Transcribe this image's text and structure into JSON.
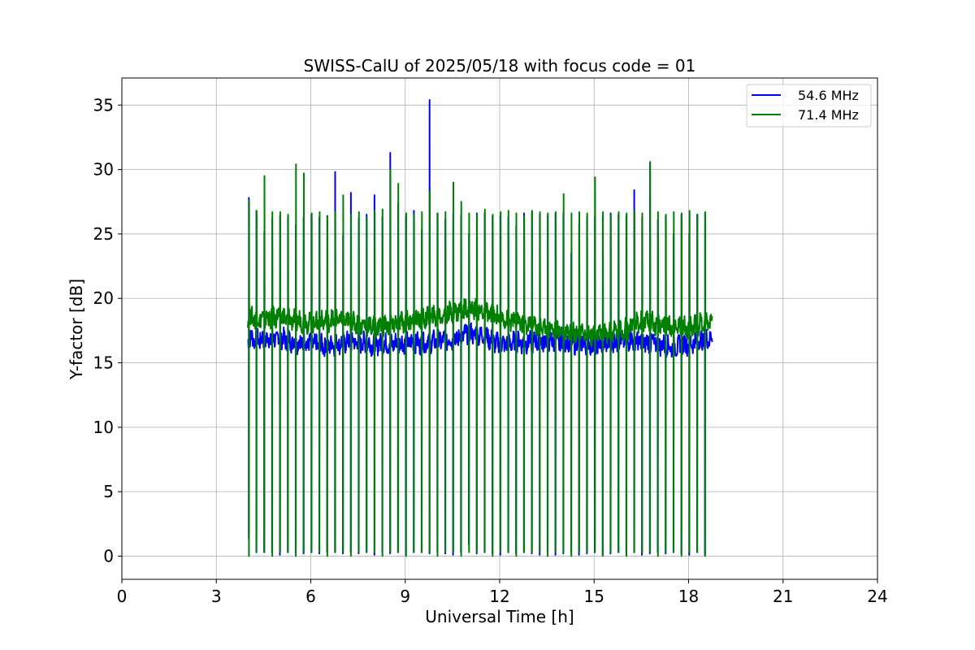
{
  "chart_data": {
    "type": "line",
    "title": "SWISS-CalU of 2025/05/18 with focus code = 01",
    "xlabel": "Universal Time [h]",
    "ylabel": "Y-factor [dB]",
    "xlim": [
      0,
      24
    ],
    "ylim": [
      -1.8,
      37.1
    ],
    "xticks": [
      0,
      3,
      6,
      9,
      12,
      15,
      18,
      21,
      24
    ],
    "yticks": [
      0,
      5,
      10,
      15,
      20,
      25,
      30,
      35
    ],
    "xtick_labels": [
      "0",
      "3",
      "6",
      "9",
      "12",
      "15",
      "18",
      "21",
      "24"
    ],
    "ytick_labels": [
      "0",
      "5",
      "10",
      "15",
      "20",
      "25",
      "30",
      "35"
    ],
    "grid": true,
    "legend_position": "top-right",
    "data_start": 4.0,
    "data_end": 18.75,
    "calibration_times": [
      4.03,
      4.27,
      4.52,
      4.77,
      5.02,
      5.27,
      5.52,
      5.77,
      6.02,
      6.27,
      6.52,
      6.77,
      7.02,
      7.27,
      7.52,
      7.77,
      8.02,
      8.27,
      8.52,
      8.77,
      9.02,
      9.27,
      9.52,
      9.77,
      10.02,
      10.27,
      10.52,
      10.77,
      11.02,
      11.27,
      11.52,
      11.77,
      12.02,
      12.27,
      12.52,
      12.77,
      13.02,
      13.27,
      13.52,
      13.77,
      14.02,
      14.27,
      14.52,
      14.77,
      15.02,
      15.27,
      15.52,
      15.77,
      16.02,
      16.27,
      16.52,
      16.77,
      17.02,
      17.27,
      17.52,
      17.77,
      18.02,
      18.27,
      18.52
    ],
    "series": [
      {
        "name": "54.6 MHz",
        "color": "#0000ff",
        "baseline": {
          "x": [
            4.0,
            4.5,
            5.0,
            5.5,
            6.0,
            6.5,
            7.0,
            7.5,
            8.0,
            8.5,
            9.0,
            9.5,
            10.0,
            10.5,
            11.0,
            11.5,
            12.0,
            12.5,
            13.0,
            13.5,
            14.0,
            14.5,
            15.0,
            15.5,
            16.0,
            16.5,
            17.0,
            17.5,
            18.0,
            18.5,
            18.75
          ],
          "y": [
            16.9,
            16.8,
            16.9,
            16.6,
            16.5,
            16.3,
            16.6,
            16.6,
            16.4,
            16.5,
            16.6,
            16.5,
            16.7,
            16.8,
            17.3,
            17.1,
            16.4,
            16.6,
            16.6,
            16.7,
            16.6,
            16.5,
            16.4,
            16.5,
            16.8,
            16.6,
            16.5,
            16.2,
            16.5,
            16.8,
            16.9
          ]
        },
        "spike_peaks": [
          27.8,
          26.8,
          25.2,
          26.2,
          26.4,
          26.3,
          25.7,
          26.3,
          26.5,
          26.3,
          26.4,
          29.8,
          24.9,
          28.2,
          26.2,
          26.5,
          28.0,
          26.3,
          31.3,
          27.3,
          26.4,
          26.8,
          25.3,
          35.4,
          26.6,
          26.1,
          26.6,
          26.4,
          25.0,
          26.6,
          26.6,
          26.4,
          26.4,
          26.3,
          25.6,
          26.6,
          26.7,
          26.5,
          26.4,
          26.6,
          26.6,
          23.5,
          25.8,
          26.3,
          26.3,
          26.4,
          26.6,
          26.5,
          26.4,
          28.4,
          26.3,
          30.5,
          26.1,
          26.4,
          25.0,
          26.5,
          25.0,
          26.5,
          26.6
        ],
        "spike_floors": [
          1.4,
          0.3,
          0.3,
          0.3,
          0.1,
          0.3,
          0.3,
          0.2,
          0.3,
          0.2,
          0.3,
          0.3,
          0.2,
          0.3,
          0.2,
          0.3,
          0.1,
          0.3,
          0.2,
          0.3,
          0.1,
          0.3,
          0.3,
          0.2,
          0.3,
          0.2,
          0.1,
          0.3,
          0.9,
          0.2,
          0.3,
          0.2,
          0.1,
          0.3,
          0.2,
          0.3,
          0.2,
          0.1,
          0.3,
          0.1,
          0.2,
          0.3,
          0.1,
          0.2,
          0.3,
          0.1,
          0.2,
          0.3,
          0.2,
          0.3,
          0.1,
          0.2,
          0.3,
          0.2,
          0.3,
          0.2,
          0.1,
          0.3,
          0.1
        ]
      },
      {
        "name": "71.4 MHz",
        "color": "#008000",
        "baseline": {
          "x": [
            4.0,
            4.5,
            5.0,
            5.5,
            6.0,
            6.5,
            7.0,
            7.5,
            8.0,
            8.5,
            9.0,
            9.5,
            10.0,
            10.5,
            11.0,
            11.5,
            12.0,
            12.5,
            13.0,
            13.5,
            14.0,
            14.5,
            15.0,
            15.5,
            16.0,
            16.5,
            17.0,
            17.5,
            18.0,
            18.5,
            18.75
          ],
          "y": [
            18.5,
            18.4,
            18.6,
            18.3,
            18.1,
            18.3,
            18.3,
            18.0,
            17.8,
            17.9,
            18.2,
            18.4,
            18.6,
            18.9,
            19.3,
            18.9,
            18.5,
            18.2,
            17.9,
            17.7,
            17.5,
            17.4,
            17.1,
            17.3,
            17.6,
            18.2,
            18.0,
            17.8,
            17.7,
            18.1,
            18.5
          ]
        },
        "spike_peaks": [
          27.6,
          26.8,
          29.5,
          26.7,
          26.7,
          26.5,
          30.4,
          29.7,
          26.6,
          26.7,
          26.4,
          26.7,
          28.0,
          26.5,
          26.7,
          26.3,
          26.8,
          26.9,
          30.0,
          28.9,
          26.6,
          26.5,
          26.7,
          28.3,
          26.6,
          26.7,
          29.0,
          27.5,
          26.6,
          26.5,
          26.9,
          26.5,
          26.7,
          26.8,
          26.6,
          26.4,
          26.8,
          26.7,
          26.6,
          26.7,
          28.1,
          26.6,
          26.7,
          26.6,
          29.4,
          26.7,
          26.5,
          26.7,
          26.6,
          26.8,
          26.6,
          30.6,
          26.7,
          26.5,
          26.7,
          26.6,
          26.8,
          26.5,
          26.7
        ],
        "spike_floors": [
          0.0,
          0.3,
          0.3,
          0.0,
          0.3,
          0.3,
          0.0,
          0.3,
          0.3,
          0.3,
          0.0,
          0.3,
          0.3,
          0.0,
          0.3,
          0.3,
          0.3,
          0.0,
          0.3,
          0.3,
          0.0,
          0.3,
          0.3,
          0.3,
          0.0,
          0.3,
          0.3,
          0.0,
          0.3,
          0.3,
          0.3,
          0.0,
          0.3,
          0.3,
          0.0,
          0.3,
          0.3,
          0.3,
          0.0,
          0.3,
          0.3,
          0.0,
          0.3,
          0.3,
          0.3,
          0.0,
          0.3,
          0.3,
          0.0,
          0.3,
          0.3,
          0.3,
          0.0,
          0.3,
          0.3,
          0.0,
          0.3,
          0.3,
          0.0
        ]
      }
    ]
  }
}
